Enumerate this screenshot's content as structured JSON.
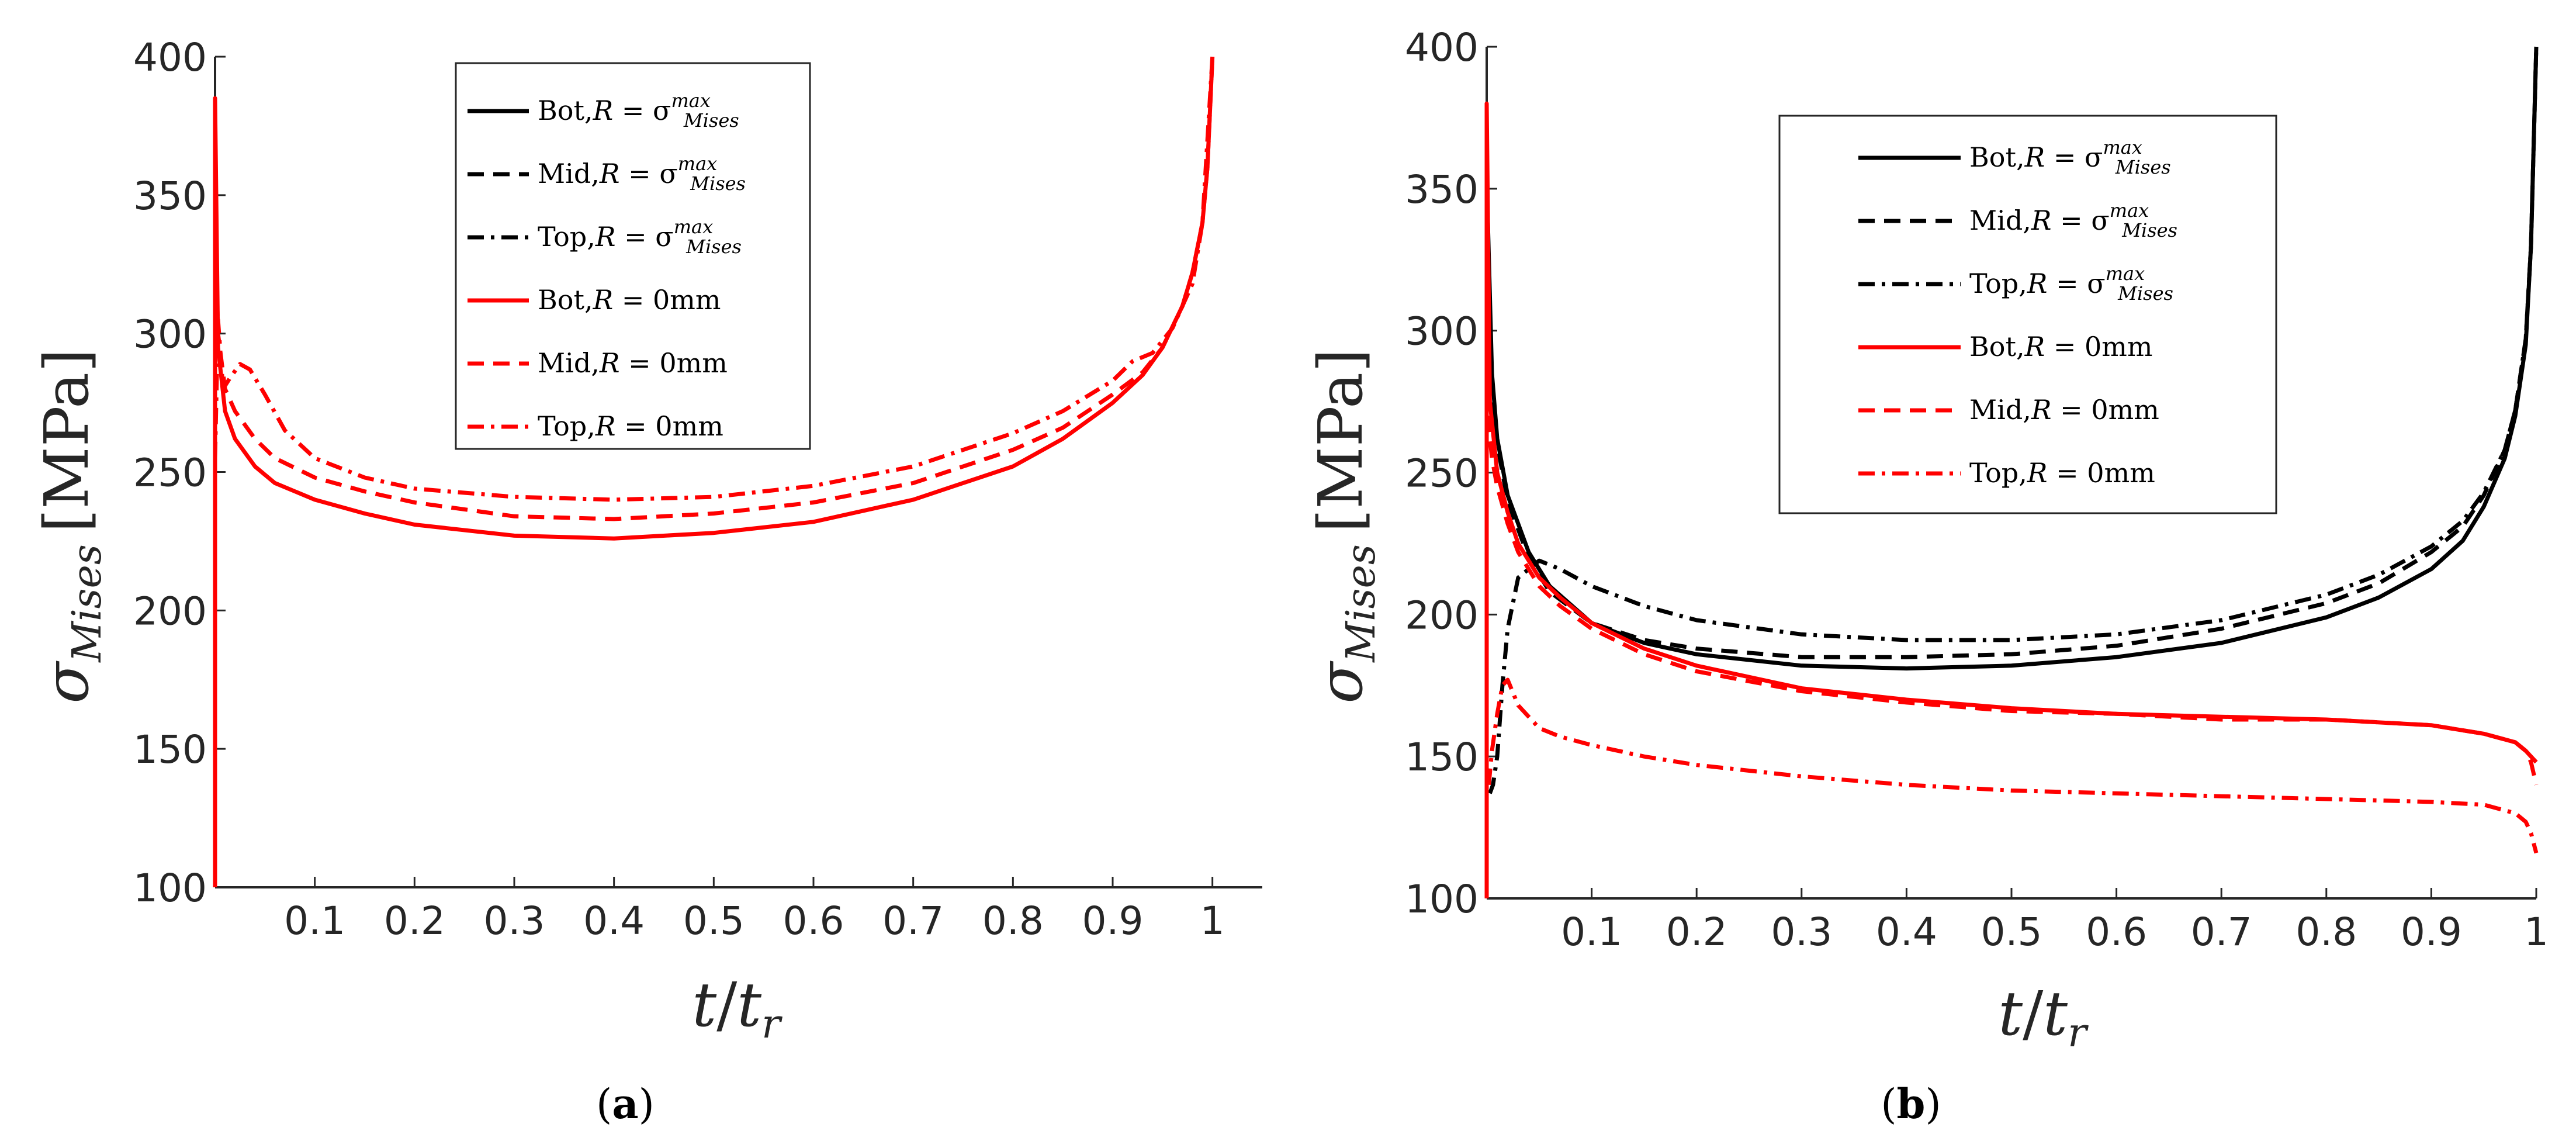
{
  "colors": {
    "black": "#000000",
    "red": "#ff0000",
    "axis": "#262626"
  },
  "chart_data": [
    {
      "panel_label": "(a)",
      "panel_letter": "a",
      "type": "line",
      "xlabel": "t/t_r",
      "xlabel_t": "t",
      "xlabel_r": "r",
      "ylabel": "σ_Mises [MPa]",
      "ylabel_sigma": "σ",
      "ylabel_sub": "Mises",
      "ylabel_unit": "[MPa]",
      "xlim": [
        0,
        1.05
      ],
      "ylim": [
        100,
        400
      ],
      "xticks": [
        "0.1",
        "0.2",
        "0.3",
        "0.4",
        "0.5",
        "0.6",
        "0.7",
        "0.8",
        "0.9",
        "1"
      ],
      "yticks": [
        "100",
        "150",
        "200",
        "250",
        "300",
        "350",
        "400"
      ],
      "legend": [
        {
          "prefix": "Bot,",
          "suffix": " = σ",
          "sup": "max",
          "sub": "Mises",
          "color": "#000000",
          "dash": "solid"
        },
        {
          "prefix": "Mid,",
          "suffix": " = σ",
          "sup": "max",
          "sub": "Mises",
          "color": "#000000",
          "dash": "dashed"
        },
        {
          "prefix": "Top,",
          "suffix": " = σ",
          "sup": "max",
          "sub": "Mises",
          "color": "#000000",
          "dash": "dashdot"
        },
        {
          "prefix": "Bot,",
          "suffix": " = 0mm",
          "color": "#ff0000",
          "dash": "solid"
        },
        {
          "prefix": "Mid,",
          "suffix": " = 0mm",
          "color": "#ff0000",
          "dash": "dashed"
        },
        {
          "prefix": "Top,",
          "suffix": " = 0mm",
          "color": "#ff0000",
          "dash": "dashdot"
        }
      ],
      "series": [
        {
          "name": "Bot,R = 0mm",
          "color": "#ff0000",
          "dash": "solid",
          "x": [
            0,
            0,
            0.003,
            0.01,
            0.02,
            0.04,
            0.06,
            0.1,
            0.15,
            0.2,
            0.3,
            0.4,
            0.5,
            0.6,
            0.7,
            0.8,
            0.85,
            0.9,
            0.93,
            0.95,
            0.97,
            0.98,
            0.99,
            0.995,
            1.0
          ],
          "y": [
            100,
            385,
            295,
            272,
            262,
            252,
            246,
            240,
            235,
            231,
            227,
            226,
            228,
            232,
            240,
            252,
            262,
            275,
            285,
            295,
            310,
            322,
            340,
            360,
            400
          ]
        },
        {
          "name": "Mid,R = 0mm",
          "color": "#ff0000",
          "dash": "dashed",
          "x": [
            0,
            0.003,
            0.01,
            0.02,
            0.04,
            0.06,
            0.1,
            0.15,
            0.2,
            0.3,
            0.4,
            0.5,
            0.6,
            0.7,
            0.8,
            0.85,
            0.9,
            0.93,
            0.95,
            0.97,
            0.98,
            0.99,
            0.995,
            1.0
          ],
          "y": [
            340,
            300,
            280,
            272,
            262,
            255,
            248,
            243,
            239,
            234,
            233,
            235,
            239,
            246,
            258,
            266,
            278,
            286,
            295,
            310,
            322,
            340,
            360,
            400
          ]
        },
        {
          "name": "Top,R = 0mm",
          "color": "#ff0000",
          "dash": "dashdot",
          "x": [
            0,
            0.003,
            0.008,
            0.015,
            0.025,
            0.035,
            0.05,
            0.07,
            0.1,
            0.15,
            0.2,
            0.3,
            0.4,
            0.5,
            0.6,
            0.7,
            0.8,
            0.85,
            0.9,
            0.92,
            0.94,
            0.96,
            0.98,
            0.99,
            1.0
          ],
          "y": [
            255,
            305,
            280,
            284,
            289,
            287,
            278,
            265,
            255,
            248,
            244,
            241,
            240,
            241,
            245,
            252,
            264,
            272,
            283,
            290,
            293,
            302,
            318,
            340,
            400
          ]
        }
      ]
    },
    {
      "panel_label": "(b)",
      "panel_letter": "b",
      "type": "line",
      "xlabel": "t/t_r",
      "xlabel_t": "t",
      "xlabel_r": "r",
      "ylabel": "σ_Mises [MPa]",
      "ylabel_sigma": "σ",
      "ylabel_sub": "Mises",
      "ylabel_unit": "[MPa]",
      "xlim": [
        0,
        1.0
      ],
      "ylim": [
        100,
        400
      ],
      "xticks": [
        "0.1",
        "0.2",
        "0.3",
        "0.4",
        "0.5",
        "0.6",
        "0.7",
        "0.8",
        "0.9",
        "1"
      ],
      "yticks": [
        "100",
        "150",
        "200",
        "250",
        "300",
        "350",
        "400"
      ],
      "legend": [
        {
          "prefix": "Bot,",
          "suffix": " = σ",
          "sup": "max",
          "sub": "Mises",
          "color": "#000000",
          "dash": "solid"
        },
        {
          "prefix": "Mid,",
          "suffix": " = σ",
          "sup": "max",
          "sub": "Mises",
          "color": "#000000",
          "dash": "dashed"
        },
        {
          "prefix": "Top,",
          "suffix": " = σ",
          "sup": "max",
          "sub": "Mises",
          "color": "#000000",
          "dash": "dashdot"
        },
        {
          "prefix": "Bot,",
          "suffix": " = 0mm",
          "color": "#ff0000",
          "dash": "solid"
        },
        {
          "prefix": "Mid,",
          "suffix": " = 0mm",
          "color": "#ff0000",
          "dash": "dashed"
        },
        {
          "prefix": "Top,",
          "suffix": " = 0mm",
          "color": "#ff0000",
          "dash": "dashdot"
        }
      ],
      "series": [
        {
          "name": "Bot,R = σmax Mises",
          "color": "#000000",
          "dash": "solid",
          "x": [
            0.001,
            0.005,
            0.01,
            0.02,
            0.04,
            0.06,
            0.1,
            0.15,
            0.2,
            0.3,
            0.4,
            0.5,
            0.6,
            0.7,
            0.8,
            0.85,
            0.9,
            0.93,
            0.95,
            0.97,
            0.98,
            0.99,
            0.995,
            1.0
          ],
          "y": [
            340,
            285,
            262,
            242,
            222,
            210,
            197,
            190,
            186,
            182,
            181,
            182,
            185,
            190,
            199,
            206,
            216,
            226,
            238,
            255,
            270,
            295,
            330,
            400
          ]
        },
        {
          "name": "Mid,R = σmax Mises",
          "color": "#000000",
          "dash": "dashed",
          "x": [
            0.001,
            0.005,
            0.01,
            0.02,
            0.04,
            0.06,
            0.1,
            0.15,
            0.2,
            0.3,
            0.4,
            0.5,
            0.6,
            0.7,
            0.8,
            0.85,
            0.9,
            0.93,
            0.95,
            0.97,
            0.98,
            0.99,
            0.995,
            1.0
          ],
          "y": [
            320,
            280,
            260,
            240,
            220,
            208,
            197,
            191,
            188,
            185,
            185,
            186,
            189,
            195,
            204,
            211,
            222,
            231,
            242,
            258,
            272,
            297,
            330,
            400
          ]
        },
        {
          "name": "Top,R = σmax Mises",
          "color": "#000000",
          "dash": "dashdot",
          "x": [
            0.003,
            0.006,
            0.01,
            0.015,
            0.02,
            0.03,
            0.05,
            0.07,
            0.1,
            0.15,
            0.2,
            0.3,
            0.4,
            0.5,
            0.6,
            0.7,
            0.8,
            0.85,
            0.9,
            0.93,
            0.95,
            0.97,
            0.98,
            0.99,
            0.995,
            1.0
          ],
          "y": [
            137,
            140,
            150,
            175,
            195,
            213,
            219,
            216,
            210,
            203,
            198,
            193,
            191,
            191,
            193,
            198,
            207,
            214,
            224,
            233,
            243,
            258,
            272,
            297,
            330,
            400
          ]
        },
        {
          "name": "Bot,R = 0mm",
          "color": "#ff0000",
          "dash": "solid",
          "x": [
            0,
            0,
            0.003,
            0.01,
            0.02,
            0.03,
            0.05,
            0.07,
            0.1,
            0.15,
            0.2,
            0.3,
            0.4,
            0.5,
            0.6,
            0.7,
            0.8,
            0.9,
            0.95,
            0.98,
            0.99,
            0.995,
            1.0
          ],
          "y": [
            100,
            380,
            275,
            250,
            236,
            225,
            213,
            206,
            197,
            188,
            182,
            174,
            170,
            167,
            165,
            164,
            163,
            161,
            158,
            155,
            152,
            150,
            148
          ]
        },
        {
          "name": "Mid,R = 0mm",
          "color": "#ff0000",
          "dash": "dashed",
          "x": [
            0.001,
            0.005,
            0.01,
            0.02,
            0.03,
            0.05,
            0.07,
            0.1,
            0.15,
            0.2,
            0.3,
            0.4,
            0.5,
            0.6,
            0.7,
            0.8,
            0.9,
            0.95,
            0.98,
            0.99,
            0.995,
            1.0
          ],
          "y": [
            270,
            255,
            245,
            232,
            222,
            210,
            203,
            195,
            186,
            180,
            173,
            169,
            166,
            165,
            163,
            163,
            161,
            158,
            155,
            152,
            148,
            140
          ]
        },
        {
          "name": "Top,R = 0mm",
          "color": "#ff0000",
          "dash": "dashdot",
          "x": [
            0.002,
            0.005,
            0.01,
            0.015,
            0.02,
            0.03,
            0.05,
            0.07,
            0.1,
            0.15,
            0.2,
            0.3,
            0.4,
            0.5,
            0.6,
            0.7,
            0.8,
            0.9,
            0.95,
            0.98,
            0.99,
            0.995,
            1.0
          ],
          "y": [
            140,
            152,
            165,
            175,
            177,
            168,
            160,
            157,
            154,
            150,
            147,
            143,
            140,
            138,
            137,
            136,
            135,
            134,
            133,
            130,
            127,
            123,
            116
          ]
        }
      ]
    }
  ]
}
